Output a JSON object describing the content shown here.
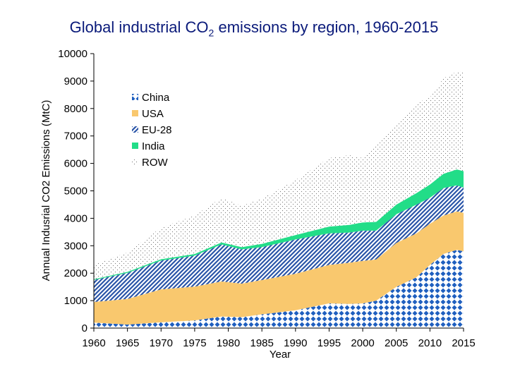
{
  "chart_data": {
    "type": "area",
    "stacked": true,
    "title_main": "Global industrial CO",
    "title_sub": "2",
    "title_rest": " emissions by region, 1960-2015",
    "xlabel": "Year",
    "ylabel": "Annual Indusrial CO2 Emissions (MtC)",
    "xlim": [
      1960,
      2015
    ],
    "ylim": [
      0,
      10000
    ],
    "xticks": [
      1960,
      1965,
      1970,
      1975,
      1980,
      1985,
      1990,
      1995,
      2000,
      2005,
      2010,
      2015
    ],
    "xtick_labels": [
      "1960",
      "1965",
      "1970",
      "1975",
      "1980",
      "1985",
      "1990",
      "1995",
      "2000",
      "2005",
      "2010",
      "2015"
    ],
    "yticks": [
      0,
      1000,
      2000,
      3000,
      4000,
      5000,
      6000,
      7000,
      8000,
      9000,
      10000
    ],
    "ytick_labels": [
      "0",
      "1000",
      "2000",
      "3000",
      "4000",
      "5000",
      "6000",
      "7000",
      "8000",
      "9000",
      "10000"
    ],
    "legend_position": "top-left",
    "x": [
      1960,
      1965,
      1970,
      1975,
      1979,
      1982,
      1985,
      1990,
      1995,
      1998,
      2000,
      2002,
      2005,
      2008,
      2010,
      2012,
      2014,
      2015
    ],
    "series": [
      {
        "name": "China",
        "color": "#1f5fbf",
        "pattern": "diamonds",
        "values": [
          200,
          130,
          210,
          280,
          420,
          400,
          500,
          650,
          900,
          880,
          900,
          1000,
          1500,
          1850,
          2300,
          2700,
          2850,
          2800
        ]
      },
      {
        "name": "USA",
        "color": "#f9c86e",
        "pattern": "solid",
        "values": [
          750,
          930,
          1200,
          1230,
          1280,
          1220,
          1250,
          1330,
          1400,
          1500,
          1550,
          1500,
          1600,
          1600,
          1500,
          1400,
          1400,
          1400
        ]
      },
      {
        "name": "EU-28",
        "color": "#2a55a8",
        "pattern": "diagonal",
        "values": [
          800,
          950,
          1050,
          1130,
          1350,
          1250,
          1200,
          1250,
          1150,
          1100,
          1100,
          1050,
          1050,
          1050,
          950,
          1000,
          950,
          920
        ]
      },
      {
        "name": "India",
        "color": "#22dd88",
        "pattern": "solid",
        "values": [
          30,
          40,
          50,
          60,
          70,
          80,
          120,
          160,
          250,
          280,
          300,
          320,
          350,
          420,
          480,
          520,
          580,
          600
        ]
      },
      {
        "name": "ROW",
        "color": "#888888",
        "pattern": "dots",
        "values": [
          550,
          700,
          1150,
          1400,
          1630,
          1500,
          1650,
          2000,
          2500,
          2540,
          2350,
          2830,
          2950,
          3280,
          3170,
          3480,
          3560,
          3650
        ]
      }
    ]
  }
}
